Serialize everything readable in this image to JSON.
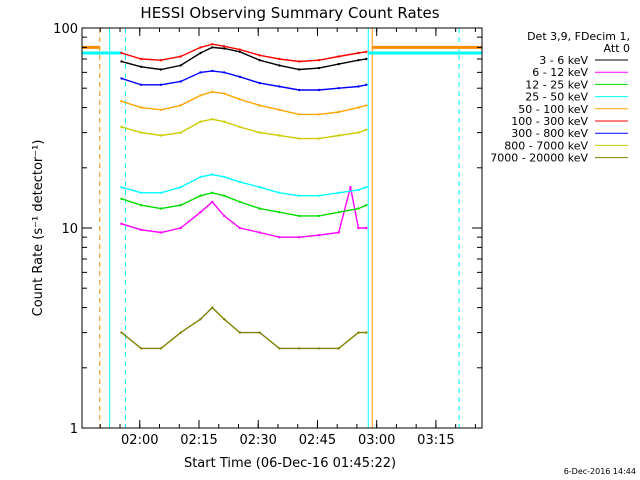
{
  "chart_data": {
    "type": "line",
    "title": "HESSI Observing Summary Count Rates",
    "xlabel": "Start Time (06-Dec-16 01:45:22)",
    "ylabel": "Count Rate (s⁻¹ detector⁻¹)",
    "x_unit": "minutes since 01:45:22",
    "xlim": [
      0,
      101.3
    ],
    "ylim": [
      1,
      100
    ],
    "yscale": "log",
    "ytick_labels": [
      "1",
      "10",
      "100"
    ],
    "xtick_labels": [
      "02:00",
      "02:15",
      "02:30",
      "02:45",
      "03:00",
      "03:15"
    ],
    "xticks": [
      14.63,
      29.63,
      44.63,
      59.63,
      74.63,
      89.63
    ],
    "legend_header": [
      "Det 3,9, FDecim 1,",
      "Att 0"
    ],
    "legend_position": "right, outside plot",
    "timestamp": "6-Dec-2016 14:44",
    "series": [
      {
        "name": "3 - 6 keV",
        "color": "#000000",
        "x": [
          10,
          15,
          20,
          25,
          30,
          33,
          36,
          40,
          45,
          50,
          55,
          60,
          65,
          70,
          72
        ],
        "values": [
          68,
          64,
          62,
          65,
          75,
          80,
          79,
          76,
          69,
          65,
          62,
          63,
          66,
          69,
          70
        ]
      },
      {
        "name": "6 - 12 keV",
        "color": "#ff00ff",
        "x": [
          10,
          15,
          20,
          25,
          30,
          33,
          36,
          40,
          45,
          50,
          55,
          60,
          65,
          68,
          70,
          72
        ],
        "values": [
          10.5,
          9.8,
          9.5,
          10,
          12,
          13.5,
          11.5,
          10,
          9.5,
          9.0,
          9.0,
          9.2,
          9.5,
          16,
          10,
          10
        ]
      },
      {
        "name": "12 - 25 keV",
        "color": "#00dd00",
        "x": [
          10,
          15,
          20,
          25,
          30,
          33,
          36,
          40,
          45,
          50,
          55,
          60,
          65,
          70,
          72
        ],
        "values": [
          14,
          13,
          12.5,
          13,
          14.5,
          15,
          14.5,
          13.5,
          12.5,
          12,
          11.5,
          11.5,
          12,
          12.5,
          13
        ]
      },
      {
        "name": "25 - 50 keV",
        "color": "#00ffff",
        "x": [
          10,
          15,
          20,
          25,
          30,
          33,
          36,
          40,
          45,
          50,
          55,
          60,
          65,
          70,
          72
        ],
        "values": [
          16,
          15,
          15,
          16,
          18,
          18.5,
          18,
          17,
          16,
          15,
          14.5,
          14.5,
          15,
          15.5,
          16
        ]
      },
      {
        "name": "50 - 100 keV",
        "color": "#ffa500",
        "x": [
          10,
          15,
          20,
          25,
          30,
          33,
          36,
          40,
          45,
          50,
          55,
          60,
          65,
          70,
          72
        ],
        "values": [
          43,
          40,
          39,
          41,
          46,
          48,
          47,
          44,
          41,
          39,
          37,
          37,
          38,
          40,
          41
        ]
      },
      {
        "name": "100 - 300 keV",
        "color": "#ff0000",
        "x": [
          10,
          15,
          20,
          25,
          30,
          33,
          36,
          40,
          45,
          50,
          55,
          60,
          65,
          70,
          72
        ],
        "values": [
          75,
          70,
          69,
          72,
          80,
          83,
          81,
          78,
          73,
          70,
          68,
          69,
          72,
          75,
          76
        ]
      },
      {
        "name": "300 - 800 keV",
        "color": "#0000ff",
        "x": [
          10,
          15,
          20,
          25,
          30,
          33,
          36,
          40,
          45,
          50,
          55,
          60,
          65,
          70,
          72
        ],
        "values": [
          56,
          52,
          52,
          54,
          60,
          61,
          60,
          57,
          53,
          51,
          49,
          49,
          50,
          51,
          52
        ]
      },
      {
        "name": "800 - 7000 keV",
        "color": "#cccc00",
        "x": [
          10,
          15,
          20,
          25,
          30,
          33,
          36,
          40,
          45,
          50,
          55,
          60,
          65,
          70,
          72
        ],
        "values": [
          32,
          30,
          29,
          30,
          34,
          35,
          34,
          32,
          30,
          29,
          28,
          28,
          29,
          30,
          31
        ]
      },
      {
        "name": "7000 - 20000 keV",
        "color": "#808000",
        "x": [
          10,
          15,
          20,
          25,
          30,
          33,
          36,
          40,
          45,
          50,
          55,
          60,
          65,
          70,
          72
        ],
        "values": [
          3,
          2.5,
          2.5,
          3,
          3.5,
          4,
          3.5,
          3,
          3,
          2.5,
          2.5,
          2.5,
          2.5,
          3,
          3
        ]
      }
    ]
  }
}
